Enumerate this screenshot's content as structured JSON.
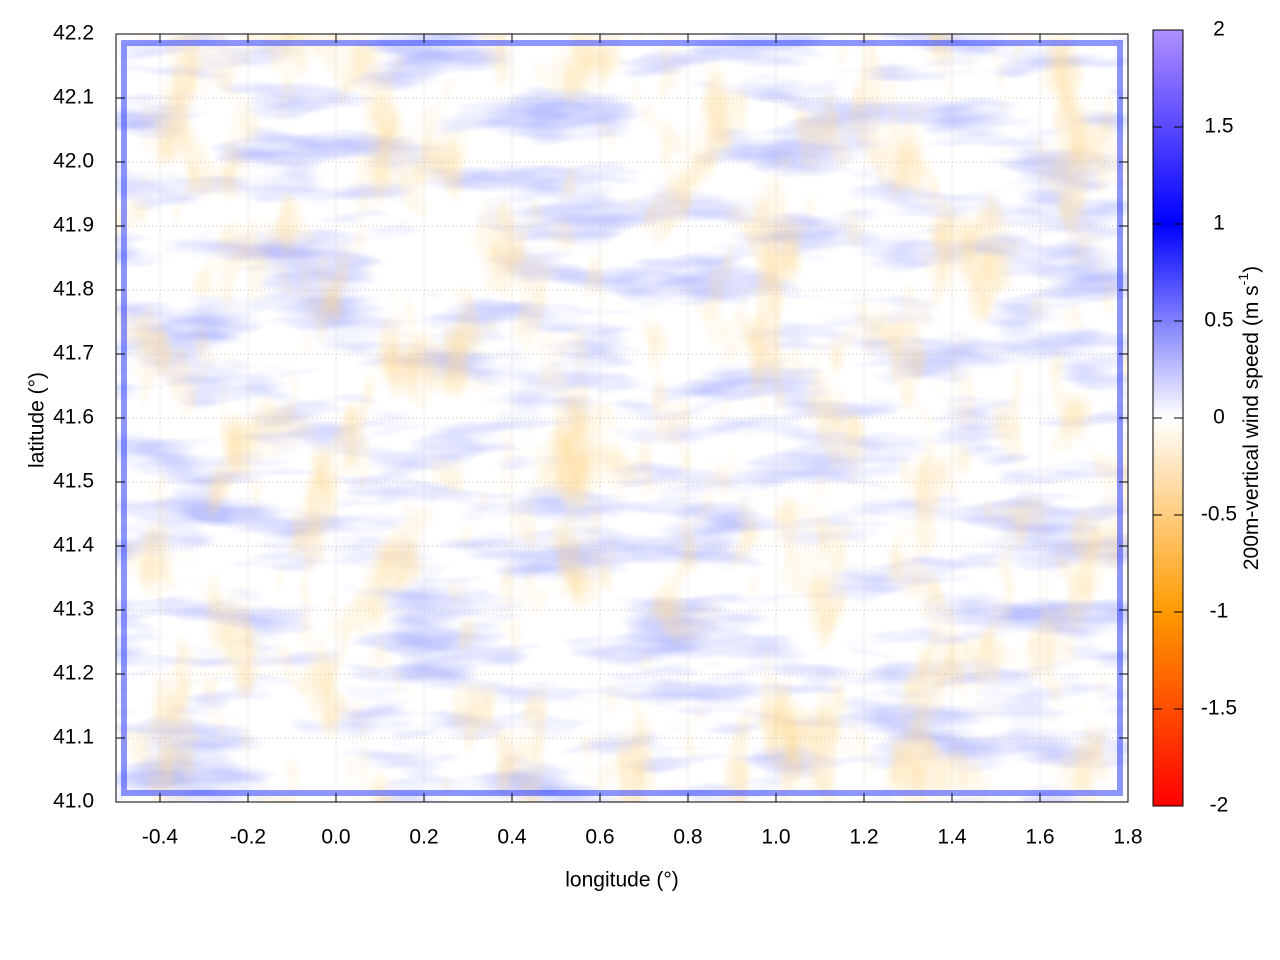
{
  "chart_data": {
    "type": "heatmap",
    "xlabel": "longitude (°)",
    "ylabel": "latitude (°)",
    "xlim": [
      -0.5,
      1.8
    ],
    "xticks": [
      -0.4,
      -0.2,
      {
        "value": 0,
        "label": "0.0"
      },
      0.2,
      0.4,
      0.6,
      0.8,
      {
        "value": 1,
        "label": "1.0"
      },
      1.2,
      1.4,
      1.6,
      1.8
    ],
    "ylim": [
      41.0,
      42.2
    ],
    "yticks": [
      {
        "value": 41,
        "label": "41.0"
      },
      41.1,
      41.2,
      41.3,
      41.4,
      41.5,
      41.6,
      41.7,
      41.8,
      41.9,
      {
        "value": 42,
        "label": "42.0"
      },
      42.1,
      42.2
    ],
    "grid": true,
    "colorbar": {
      "label": "200m-vertical wind speed (m s",
      "label_sup": "-1",
      "label_end": ")",
      "zlim": [
        -2,
        2
      ],
      "zticks": [
        -2,
        -1.5,
        -1,
        -0.5,
        0,
        0.5,
        1,
        1.5,
        2
      ],
      "colors": [
        "#ff0000",
        "#ff9a00",
        "#ffffff",
        "#0000ff",
        "#b090ff"
      ]
    }
  }
}
